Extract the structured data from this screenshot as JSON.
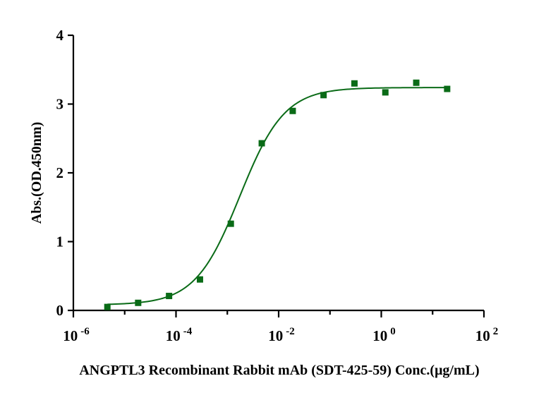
{
  "chart_data": {
    "type": "scatter",
    "xscale": "log",
    "xlabel": "ANGPTL3 Recombinant Rabbit mAb (SDT-425-59) Conc.(μg/mL)",
    "ylabel": "Abs.(OD.450nm)",
    "xlim": [
      1e-06,
      100
    ],
    "ylim": [
      0,
      4
    ],
    "x_ticks": [
      {
        "base": "10",
        "exp": "-6"
      },
      {
        "base": "10",
        "exp": "-4"
      },
      {
        "base": "10",
        "exp": "-2"
      },
      {
        "base": "10",
        "exp": "0"
      },
      {
        "base": "10",
        "exp": "2"
      }
    ],
    "y_ticks": [
      "0",
      "1",
      "2",
      "3",
      "4"
    ],
    "y_tick_values": [
      0,
      1,
      2,
      3,
      4
    ],
    "grid": false,
    "series": [
      {
        "color": "#0a6b17",
        "marker": "square",
        "x": [
          4.6e-06,
          1.83e-05,
          7.32e-05,
          0.000293,
          0.00117,
          0.00469,
          0.0188,
          0.075,
          0.3,
          1.2,
          4.8,
          19.2
        ],
        "y": [
          0.05,
          0.11,
          0.21,
          0.45,
          1.26,
          2.43,
          2.9,
          3.13,
          3.3,
          3.17,
          3.31,
          3.22
        ]
      }
    ],
    "fit": {
      "type": "4PL",
      "color": "#0a6b17",
      "bottom": 0.08,
      "top": 3.24,
      "ec50": 0.00175,
      "hill": 1.0
    }
  }
}
